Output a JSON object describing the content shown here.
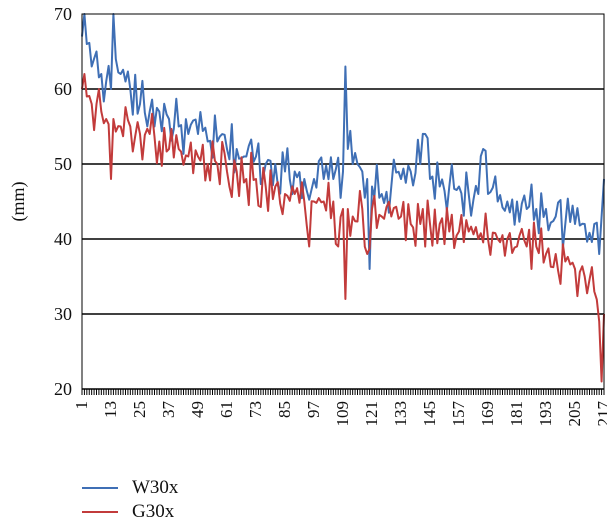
{
  "chart_data": {
    "type": "line",
    "title": "",
    "xlabel": "",
    "ylabel": "(mm)",
    "xlim": [
      1,
      217
    ],
    "ylim": [
      20,
      70
    ],
    "y_ticks": [
      20,
      30,
      40,
      50,
      60,
      70
    ],
    "x_ticks": [
      1,
      13,
      25,
      37,
      49,
      61,
      73,
      85,
      97,
      109,
      121,
      133,
      145,
      157,
      169,
      181,
      193,
      205,
      217
    ],
    "grid": "horizontal",
    "legend_position": "bottom-left",
    "series": [
      {
        "name": "W30x",
        "color": "#3f6fb5",
        "anchors": [
          [
            1,
            67
          ],
          [
            2,
            70
          ],
          [
            3,
            66
          ],
          [
            5,
            63
          ],
          [
            7,
            65
          ],
          [
            9,
            62
          ],
          [
            11,
            61
          ],
          [
            13,
            60
          ],
          [
            14,
            70
          ],
          [
            15,
            64
          ],
          [
            17,
            62
          ],
          [
            19,
            61
          ],
          [
            21,
            60
          ],
          [
            25,
            58
          ],
          [
            29,
            57
          ],
          [
            33,
            57
          ],
          [
            37,
            56
          ],
          [
            41,
            55
          ],
          [
            45,
            54
          ],
          [
            49,
            54
          ],
          [
            53,
            53
          ],
          [
            57,
            53
          ],
          [
            61,
            52
          ],
          [
            65,
            52
          ],
          [
            69,
            51
          ],
          [
            73,
            51
          ],
          [
            77,
            50
          ],
          [
            81,
            50
          ],
          [
            85,
            49
          ],
          [
            89,
            49
          ],
          [
            93,
            48
          ],
          [
            97,
            48
          ],
          [
            101,
            48
          ],
          [
            105,
            48
          ],
          [
            109,
            49
          ],
          [
            110,
            63
          ],
          [
            111,
            52
          ],
          [
            113,
            50
          ],
          [
            115,
            50
          ],
          [
            117,
            49
          ],
          [
            119,
            48
          ],
          [
            120,
            36
          ],
          [
            121,
            47
          ],
          [
            125,
            46
          ],
          [
            129,
            47
          ],
          [
            133,
            48
          ],
          [
            137,
            49
          ],
          [
            141,
            50
          ],
          [
            143,
            54
          ],
          [
            145,
            48
          ],
          [
            149,
            47
          ],
          [
            153,
            47
          ],
          [
            157,
            47
          ],
          [
            161,
            46
          ],
          [
            165,
            46
          ],
          [
            167,
            52
          ],
          [
            169,
            46
          ],
          [
            173,
            45
          ],
          [
            177,
            45
          ],
          [
            181,
            45
          ],
          [
            185,
            44
          ],
          [
            189,
            44
          ],
          [
            193,
            44
          ],
          [
            197,
            43
          ],
          [
            201,
            42
          ],
          [
            205,
            42
          ],
          [
            209,
            42
          ],
          [
            213,
            42
          ],
          [
            215,
            38
          ],
          [
            216,
            43
          ],
          [
            217,
            48
          ]
        ]
      },
      {
        "name": "G30x",
        "color": "#c23b3b",
        "anchors": [
          [
            1,
            60
          ],
          [
            2,
            62
          ],
          [
            3,
            59
          ],
          [
            5,
            58
          ],
          [
            7,
            58
          ],
          [
            9,
            57
          ],
          [
            11,
            56
          ],
          [
            13,
            48
          ],
          [
            14,
            56
          ],
          [
            17,
            55
          ],
          [
            21,
            55
          ],
          [
            25,
            54
          ],
          [
            29,
            54
          ],
          [
            33,
            53
          ],
          [
            37,
            52
          ],
          [
            41,
            52
          ],
          [
            45,
            51
          ],
          [
            49,
            51
          ],
          [
            53,
            50
          ],
          [
            57,
            50
          ],
          [
            61,
            49
          ],
          [
            65,
            49
          ],
          [
            69,
            48
          ],
          [
            73,
            48
          ],
          [
            77,
            47
          ],
          [
            81,
            47
          ],
          [
            85,
            46
          ],
          [
            89,
            46
          ],
          [
            93,
            45
          ],
          [
            95,
            39
          ],
          [
            97,
            45
          ],
          [
            101,
            45
          ],
          [
            105,
            45
          ],
          [
            107,
            39
          ],
          [
            109,
            44
          ],
          [
            110,
            32
          ],
          [
            111,
            44
          ],
          [
            113,
            43
          ],
          [
            117,
            44
          ],
          [
            119,
            38
          ],
          [
            121,
            44
          ],
          [
            125,
            43
          ],
          [
            129,
            43
          ],
          [
            133,
            43
          ],
          [
            137,
            42
          ],
          [
            141,
            42
          ],
          [
            145,
            42
          ],
          [
            149,
            42
          ],
          [
            153,
            41
          ],
          [
            157,
            41
          ],
          [
            161,
            41
          ],
          [
            165,
            40
          ],
          [
            169,
            40
          ],
          [
            173,
            40
          ],
          [
            177,
            40
          ],
          [
            181,
            39
          ],
          [
            185,
            39
          ],
          [
            189,
            39
          ],
          [
            193,
            38
          ],
          [
            197,
            38
          ],
          [
            201,
            37
          ],
          [
            205,
            36
          ],
          [
            209,
            35
          ],
          [
            213,
            33
          ],
          [
            215,
            29
          ],
          [
            216,
            21
          ],
          [
            217,
            30
          ]
        ]
      }
    ]
  }
}
